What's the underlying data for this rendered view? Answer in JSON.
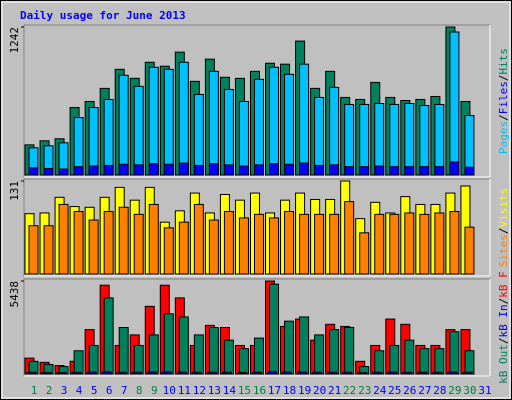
{
  "chart_data": [
    {
      "type": "bar",
      "title": "Daily usage for June 2013",
      "ylim": [
        0,
        1242
      ],
      "yticks": [
        1242
      ],
      "legend_separator": "/",
      "series": [
        {
          "name": "Hits",
          "color": "#00805c",
          "values": [
            253,
            287,
            304,
            566,
            617,
            727,
            887,
            811,
            946,
            913,
            1031,
            786,
            972,
            820,
            811,
            870,
            938,
            930,
            1124,
            727,
            870,
            651,
            634,
            777,
            651,
            625,
            634,
            659,
            1242,
            617,
            null
          ]
        },
        {
          "name": "Files",
          "color": "#0000ff",
          "values": [
            60,
            55,
            50,
            70,
            75,
            80,
            90,
            85,
            95,
            90,
            100,
            80,
            95,
            85,
            75,
            85,
            95,
            90,
            100,
            80,
            85,
            70,
            70,
            75,
            70,
            70,
            70,
            70,
            110,
            65,
            null
          ]
        },
        {
          "name": "Pages",
          "color": "#00c0ff",
          "values": [
            228,
            245,
            270,
            482,
            566,
            634,
            837,
            744,
            904,
            887,
            946,
            676,
            870,
            718,
            617,
            803,
            904,
            845,
            930,
            651,
            735,
            592,
            592,
            600,
            592,
            600,
            583,
            592,
            1200,
            499,
            null
          ]
        }
      ]
    },
    {
      "type": "bar",
      "ylim": [
        0,
        131
      ],
      "yticks": [
        131
      ],
      "legend_separator": "/",
      "series": [
        {
          "name": "Visits",
          "color": "#ffff00",
          "values": [
            85,
            86,
            108,
            95,
            94,
            108,
            122,
            104,
            122,
            73,
            89,
            114,
            86,
            112,
            104,
            114,
            86,
            104,
            114,
            105,
            105,
            131,
            78,
            101,
            86,
            109,
            98,
            98,
            114,
            124,
            null
          ]
        },
        {
          "name": "Sites",
          "color": "#ff8000",
          "values": [
            68,
            68,
            98,
            88,
            76,
            88,
            94,
            84,
            98,
            65,
            73,
            98,
            76,
            88,
            79,
            84,
            79,
            88,
            84,
            84,
            84,
            102,
            58,
            84,
            84,
            86,
            84,
            86,
            88,
            66,
            null
          ]
        }
      ]
    },
    {
      "type": "bar",
      "ylim": [
        0,
        5438
      ],
      "yticks": [
        5438
      ],
      "legend_separator": "/",
      "categories": [
        "1",
        "2",
        "3",
        "4",
        "5",
        "6",
        "7",
        "8",
        "9",
        "10",
        "11",
        "12",
        "13",
        "14",
        "15",
        "16",
        "17",
        "18",
        "19",
        "20",
        "21",
        "22",
        "23",
        "24",
        "25",
        "26",
        "27",
        "28",
        "29",
        "30",
        "31"
      ],
      "category_colors": [
        "#008040",
        "#008040",
        "#0000ff",
        "#0000ff",
        "#0000ff",
        "#0000ff",
        "#0000ff",
        "#008040",
        "#008040",
        "#0000ff",
        "#0000ff",
        "#0000ff",
        "#0000ff",
        "#0000ff",
        "#008040",
        "#008040",
        "#0000ff",
        "#0000ff",
        "#0000ff",
        "#0000ff",
        "#0000ff",
        "#008040",
        "#008040",
        "#0000ff",
        "#0000ff",
        "#0000ff",
        "#0000ff",
        "#0000ff",
        "#008040",
        "#008040",
        "#0000ff"
      ],
      "series": [
        {
          "name": "kB F",
          "color": "#ff0000",
          "values": [
            927,
            680,
            494,
            742,
            2596,
            5191,
            1669,
            2287,
            3955,
            5191,
            4450,
            1669,
            2843,
            2719,
            1669,
            1669,
            5438,
            2781,
            3214,
            1978,
            2905,
            2781,
            742,
            1669,
            3214,
            2905,
            1669,
            1669,
            2596,
            2596,
            null
          ]
        },
        {
          "name": "kB In",
          "color": "#0000ff",
          "values": [
            100,
            90,
            80,
            100,
            110,
            120,
            100,
            100,
            110,
            120,
            110,
            100,
            100,
            100,
            90,
            100,
            130,
            110,
            110,
            100,
            100,
            100,
            80,
            100,
            110,
            100,
            100,
            100,
            110,
            100,
            null
          ]
        },
        {
          "name": "kB Out",
          "color": "#00805c",
          "values": [
            742,
            556,
            433,
            1360,
            1669,
            4450,
            2719,
            1669,
            2287,
            3523,
            3337,
            2287,
            2719,
            1978,
            1483,
            2101,
            5253,
            3090,
            3337,
            2287,
            2596,
            2719,
            433,
            1360,
            1669,
            1978,
            1483,
            1483,
            2472,
            1360,
            null
          ]
        }
      ]
    }
  ]
}
